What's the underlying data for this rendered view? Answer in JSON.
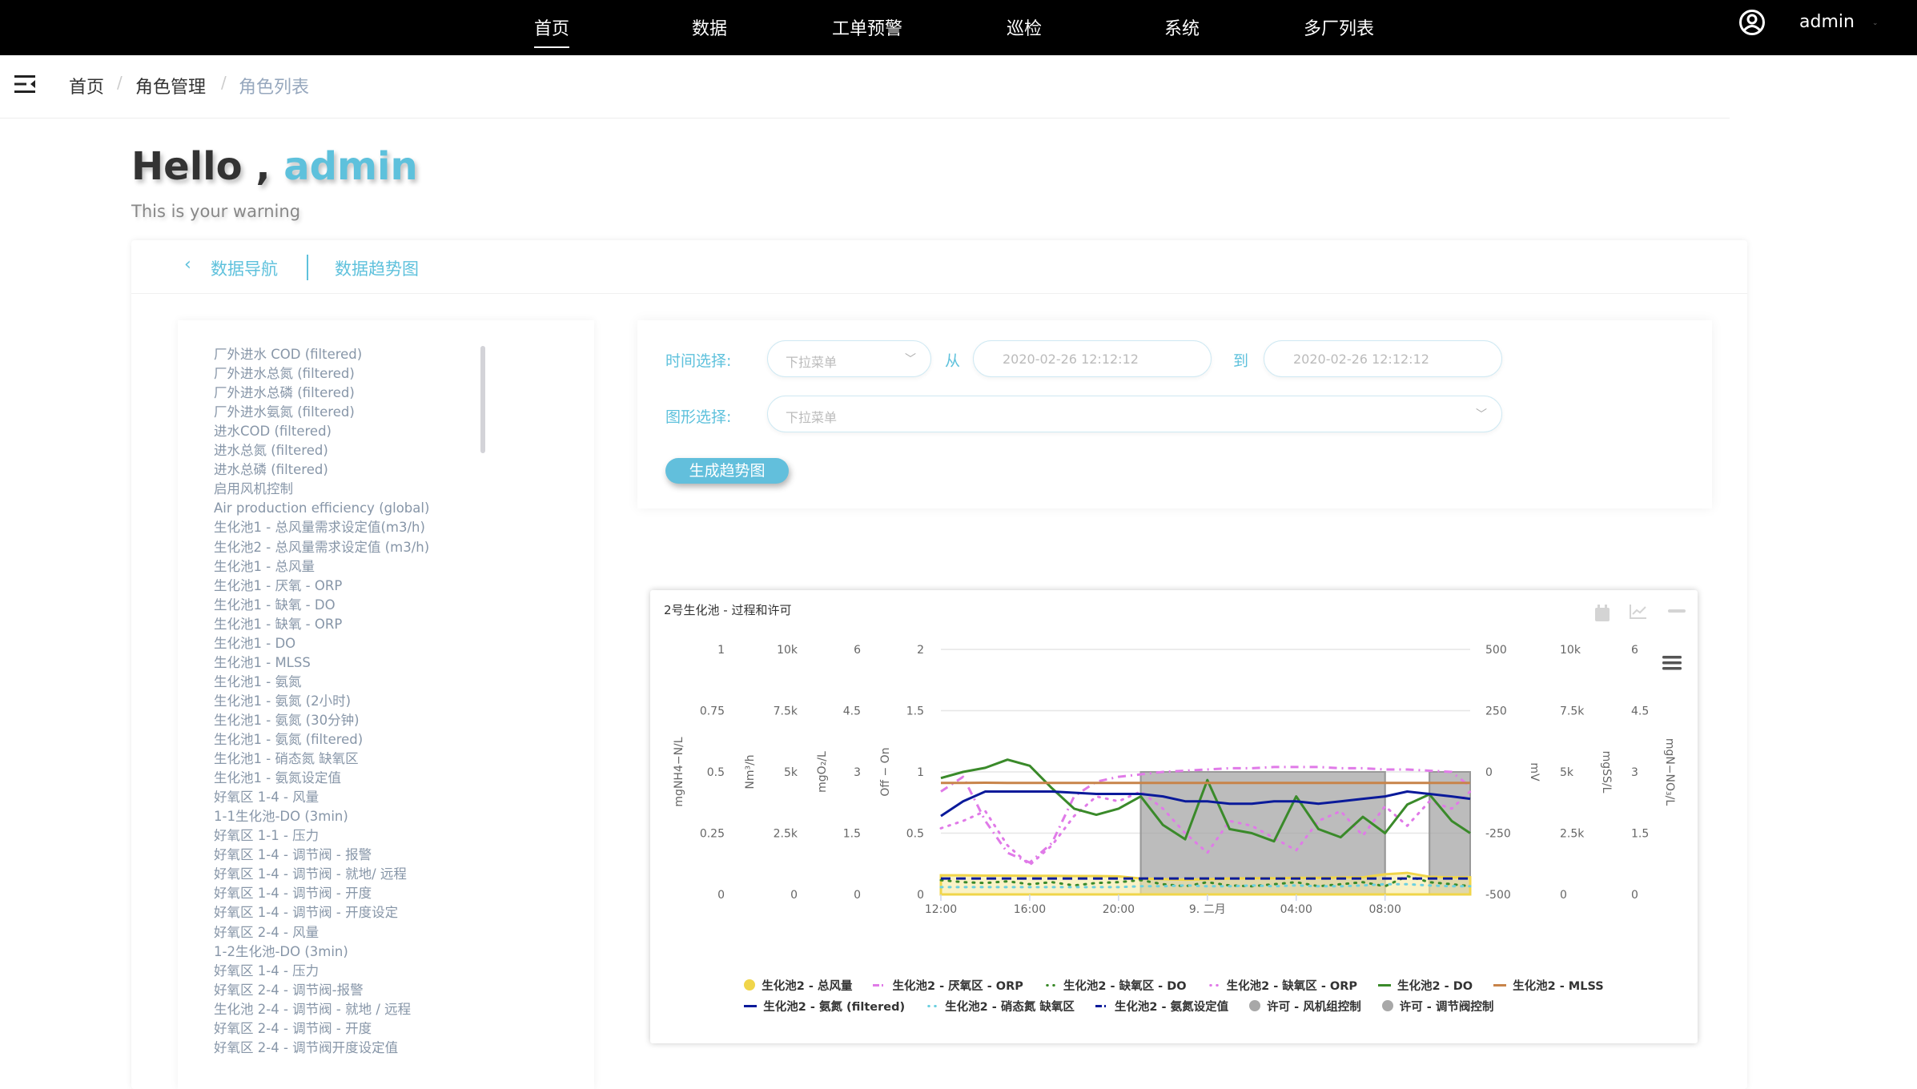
{
  "topbar": {
    "nav": [
      {
        "label": "首页",
        "active": true
      },
      {
        "label": "数据"
      },
      {
        "label": "工单预警"
      },
      {
        "label": "巡检"
      },
      {
        "label": "系统"
      },
      {
        "label": "多厂列表"
      }
    ],
    "user_icon": "user-circle-icon",
    "username": "admin"
  },
  "breadcrumb": {
    "menu_icon": "menu-fold-icon",
    "items": [
      "首页",
      "角色管理",
      "角色列表"
    ],
    "separator": "/"
  },
  "greeting": {
    "hello": "Hello ,",
    "name": "admin",
    "subtitle": "This is your warning"
  },
  "tabs": {
    "back": "数据导航",
    "current": "数据趋势图"
  },
  "data_list": [
    "厂外进水 COD (filtered)",
    "厂外进水总氮 (filtered)",
    "厂外进水总磷 (filtered)",
    "厂外进水氨氮 (filtered)",
    "进水COD (filtered)",
    "进水总氮 (filtered)",
    "进水总磷 (filtered)",
    "启用风机控制",
    "Air production efficiency (global)",
    "生化池1 - 总风量需求设定值(m3/h)",
    "生化池2 - 总风量需求设定值 (m3/h)",
    "生化池1 - 总风量",
    "生化池1 - 厌氧 - ORP",
    "生化池1 - 缺氧 - DO",
    "生化池1 - 缺氧 - ORP",
    "生化池1 - DO",
    "生化池1 - MLSS",
    "生化池1 - 氨氮",
    "生化池1 - 氨氮 (2小时)",
    "生化池1 - 氨氮 (30分钟)",
    "生化池1 - 氨氮 (filtered)",
    "生化池1 - 硝态氮 缺氧区",
    "生化池1 - 氨氮设定值",
    "好氧区 1-4 - 风量",
    "1-1生化池-DO (3min)",
    "好氧区 1-1 - 压力",
    "好氧区 1-4 - 调节阀 - 报警",
    "好氧区 1-4 - 调节阀 - 就地/ 远程",
    "好氧区 1-4 - 调节阀 - 开度",
    "好氧区 1-4 - 调节阀 - 开度设定",
    "好氧区 2-4 - 风量",
    "1-2生化池-DO (3min)",
    "好氧区 1-4 - 压力",
    "好氧区 2-4 - 调节阀-报警",
    "生化池 2-4 - 调节阀 - 就地 / 远程",
    "好氧区 2-4 - 调节阀 - 开度",
    "好氧区 2-4 - 调节阀开度设定值"
  ],
  "form": {
    "time_label": "时间选择:",
    "time_select_placeholder": "下拉菜单",
    "from_label": "从",
    "from_value": "2020-02-26 12:12:12",
    "to_label": "到",
    "to_value": "2020-02-26 12:12:12",
    "graph_label": "图形选择:",
    "graph_select_placeholder": "下拉菜单",
    "generate_button": "生成趋势图"
  },
  "colors": {
    "accent": "#5ec1dc",
    "topbar": "#000000"
  },
  "chart_data": {
    "type": "line",
    "title": "2号生化池 - 过程和许可",
    "toolbar_icons": [
      "calendar-icon",
      "line-chart-icon",
      "minimize-icon",
      "menu-icon"
    ],
    "grid": true,
    "legend_position": "bottom",
    "x": [
      "12:00",
      "13:00",
      "14:00",
      "15:00",
      "16:00",
      "17:00",
      "18:00",
      "19:00",
      "20:00",
      "21:00",
      "22:00",
      "23:00",
      "00:00",
      "01:00",
      "02:00",
      "03:00",
      "04:00",
      "05:00",
      "06:00",
      "07:00",
      "08:00",
      "09:00",
      "10:00",
      "11:00",
      "11:50"
    ],
    "xlim": [
      "12:00",
      "11:50"
    ],
    "xticks": [
      "12:00",
      "16:00",
      "20:00",
      "9. 二月",
      "04:00",
      "08:00"
    ],
    "axes": [
      {
        "id": "nh4",
        "title": "mgNH4−N/L",
        "side": "left",
        "range": [
          0,
          1
        ],
        "ticks": [
          "0",
          "0.25",
          "0.5",
          "0.75",
          "1"
        ]
      },
      {
        "id": "air",
        "title": "Nm³/h",
        "side": "left",
        "range": [
          0,
          10000
        ],
        "ticks": [
          "0",
          "2.5k",
          "5k",
          "7.5k",
          "10k"
        ]
      },
      {
        "id": "o2",
        "title": "mgO₂/L",
        "side": "left",
        "range": [
          0,
          6
        ],
        "ticks": [
          "0",
          "1.5",
          "3",
          "4.5",
          "6"
        ]
      },
      {
        "id": "onoff",
        "title": "Off − On",
        "side": "left",
        "range": [
          0,
          2
        ],
        "ticks": [
          "0",
          "0.5",
          "1",
          "1.5",
          "2"
        ]
      },
      {
        "id": "mv",
        "title": "mV",
        "side": "right",
        "range": [
          -500,
          500
        ],
        "ticks": [
          "-500",
          "-250",
          "0",
          "250",
          "500"
        ]
      },
      {
        "id": "ss",
        "title": "mgSS/L",
        "side": "right",
        "range": [
          0,
          10000
        ],
        "ticks": [
          "0",
          "2.5k",
          "5k",
          "7.5k",
          "10k"
        ]
      },
      {
        "id": "no3",
        "title": "mgN−NO₃/L",
        "side": "right",
        "range": [
          0,
          6
        ],
        "ticks": [
          "0",
          "1.5",
          "3",
          "4.5",
          "6"
        ]
      }
    ],
    "series": [
      {
        "name": "许可 - 风机组控制",
        "axis": "onoff",
        "style": "step-area",
        "color": "#a0a0a0",
        "legend": "circle",
        "values": [
          0,
          0,
          0,
          0,
          0,
          0,
          0,
          0,
          0,
          1,
          1,
          1,
          1,
          1,
          1,
          1,
          1,
          1,
          1,
          1,
          0,
          0,
          1,
          1,
          1
        ]
      },
      {
        "name": "许可 - 调节阀控制",
        "axis": "onoff",
        "style": "step-area",
        "color": "#a0a0a0",
        "legend": "circle",
        "values": [
          0,
          0,
          0,
          0,
          0,
          0,
          0,
          0,
          0,
          1,
          1,
          1,
          1,
          1,
          1,
          1,
          1,
          1,
          1,
          1,
          0,
          0,
          1,
          1,
          1
        ]
      },
      {
        "name": "生化池2 - 总风量",
        "axis": "air",
        "style": "area",
        "color": "#f0d54a",
        "legend": "circle",
        "values": [
          780,
          780,
          770,
          770,
          760,
          760,
          750,
          750,
          740,
          650,
          620,
          600,
          620,
          650,
          660,
          660,
          680,
          680,
          690,
          700,
          820,
          880,
          720,
          700,
          700
        ]
      },
      {
        "name": "生化池2 - 厌氧区 - ORP",
        "axis": "mv",
        "style": "dashdot",
        "color": "#e07ae8",
        "legend": "dashdot",
        "values": [
          -80,
          -20,
          -200,
          -330,
          -370,
          -290,
          -100,
          -40,
          -20,
          -10,
          0,
          5,
          10,
          15,
          15,
          20,
          20,
          20,
          15,
          15,
          10,
          10,
          5,
          0,
          -60
        ]
      },
      {
        "name": "生化池2 - 缺氧区 - DO",
        "axis": "o2",
        "style": "dot",
        "color": "#3a8a2a",
        "legend": "dot",
        "values": [
          0.35,
          0.3,
          0.28,
          0.32,
          0.25,
          0.3,
          0.22,
          0.28,
          0.3,
          0.35,
          0.25,
          0.2,
          0.3,
          0.22,
          0.2,
          0.25,
          0.3,
          0.2,
          0.25,
          0.3,
          0.2,
          0.45,
          0.3,
          0.25,
          0.2
        ]
      },
      {
        "name": "生化池2 - 缺氧区 - ORP",
        "axis": "mv",
        "style": "dot",
        "color": "#e07ae8",
        "legend": "dot",
        "values": [
          -230,
          -200,
          -160,
          -300,
          -380,
          -300,
          -180,
          -100,
          -120,
          -80,
          -150,
          -250,
          -330,
          -200,
          -220,
          -270,
          -320,
          -200,
          -160,
          -260,
          -140,
          -220,
          -120,
          -150,
          -80
        ]
      },
      {
        "name": "生化池2 - DO",
        "axis": "o2",
        "style": "line",
        "color": "#3a8a2a",
        "legend": "line",
        "values": [
          2.85,
          3.0,
          3.1,
          3.3,
          3.15,
          2.6,
          2.1,
          1.95,
          2.1,
          2.4,
          1.7,
          1.35,
          2.8,
          1.6,
          1.5,
          1.3,
          2.4,
          1.6,
          1.4,
          1.9,
          1.5,
          2.2,
          2.45,
          1.8,
          1.5
        ]
      },
      {
        "name": "生化池2 - MLSS",
        "axis": "ss",
        "style": "line",
        "color": "#c8844a",
        "legend": "line",
        "values": [
          4550,
          4550,
          4560,
          4550,
          4550,
          4550,
          4550,
          4550,
          4550,
          4550,
          4550,
          4550,
          4550,
          4550,
          4550,
          4550,
          4550,
          4550,
          4550,
          4550,
          4550,
          4550,
          4550,
          4550,
          4550
        ]
      },
      {
        "name": "生化池2 - 氨氮 (filtered)",
        "axis": "nh4",
        "style": "line",
        "color": "#0a1a9a",
        "legend": "line",
        "values": [
          0.32,
          0.38,
          0.42,
          0.42,
          0.42,
          0.42,
          0.415,
          0.41,
          0.41,
          0.41,
          0.4,
          0.38,
          0.38,
          0.37,
          0.37,
          0.38,
          0.38,
          0.37,
          0.38,
          0.39,
          0.4,
          0.42,
          0.41,
          0.4,
          0.39
        ]
      },
      {
        "name": "生化池2 - 硝态氮 缺氧区",
        "axis": "no3",
        "style": "dot",
        "color": "#6cd0e0",
        "legend": "dot",
        "values": [
          0.18,
          0.18,
          0.18,
          0.18,
          0.18,
          0.18,
          0.18,
          0.18,
          0.18,
          0.2,
          0.2,
          0.22,
          0.2,
          0.2,
          0.22,
          0.2,
          0.22,
          0.2,
          0.2,
          0.22,
          0.25,
          0.25,
          0.22,
          0.2,
          0.2
        ]
      },
      {
        "name": "生化池2 - 氨氮设定值",
        "axis": "nh4",
        "style": "dash",
        "color": "#0a1a9a",
        "legend": "dashdot",
        "values": [
          0.065,
          0.065,
          0.065,
          0.065,
          0.065,
          0.065,
          0.065,
          0.065,
          0.065,
          0.065,
          0.065,
          0.065,
          0.065,
          0.065,
          0.065,
          0.065,
          0.065,
          0.065,
          0.065,
          0.065,
          0.065,
          0.065,
          0.065,
          0.065,
          0.065
        ]
      }
    ],
    "legend_rows": [
      [
        "生化池2 - 总风量",
        "生化池2 - 厌氧区 - ORP",
        "生化池2 - 缺氧区 - DO",
        "生化池2 - 缺氧区 - ORP",
        "生化池2 - DO",
        "生化池2 - MLSS"
      ],
      [
        "生化池2 - 氨氮 (filtered)",
        "生化池2 - 硝态氮 缺氧区",
        "生化池2 - 氨氮设定值",
        "许可 - 风机组控制",
        "许可 - 调节阀控制"
      ]
    ]
  }
}
